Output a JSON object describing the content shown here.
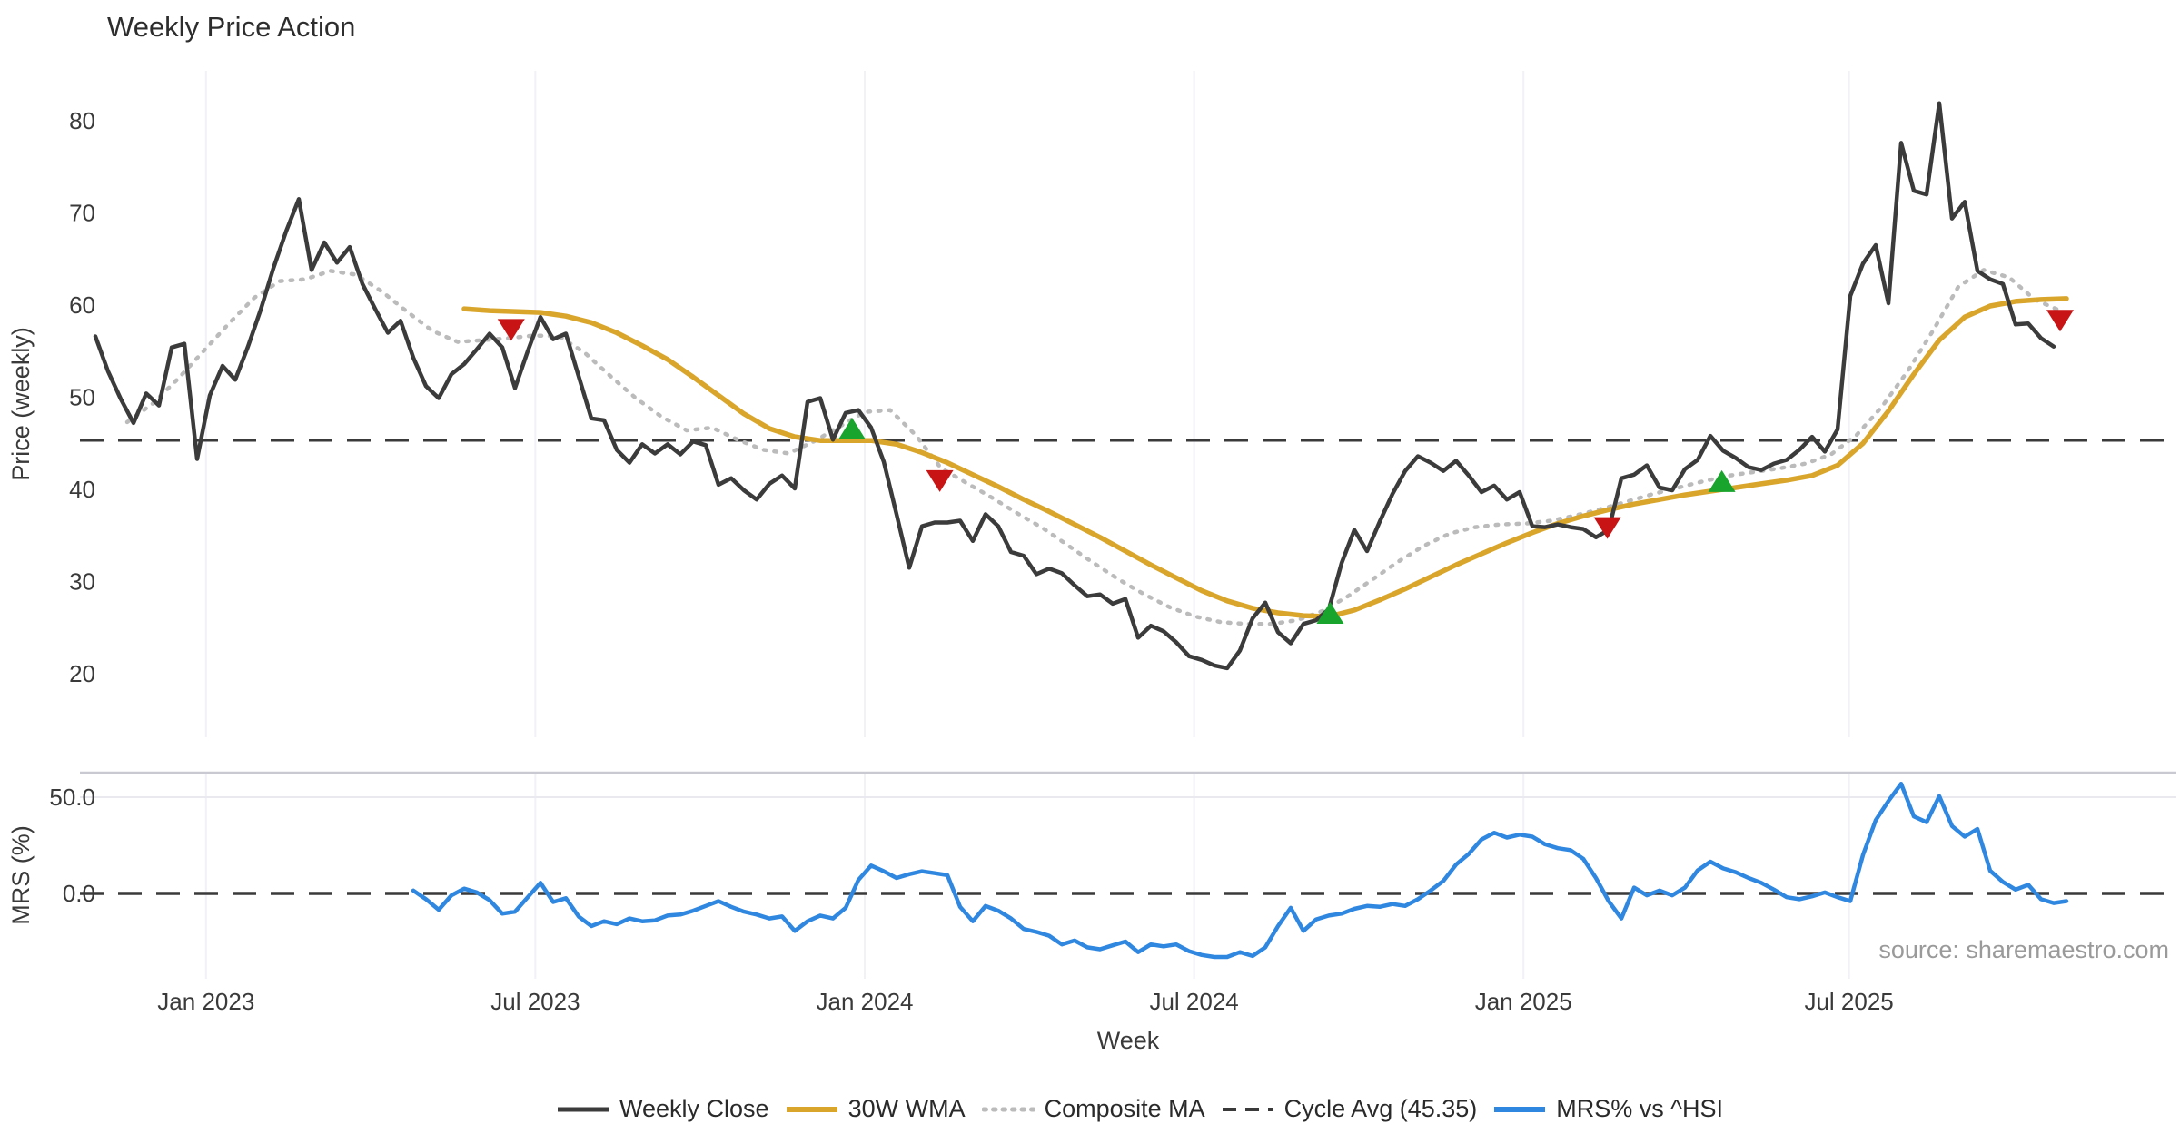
{
  "title": "Weekly Price Action",
  "source": "source: sharemaestro.com",
  "axes": {
    "price_label": "Price (weekly)",
    "mrs_label": "MRS (%)",
    "x_label": "Week",
    "price_ticks": [
      80,
      70,
      60,
      50,
      40,
      30,
      20
    ],
    "mrs_ticks": [
      {
        "value": 50,
        "label": "50.0"
      },
      {
        "value": 0,
        "label": "0.0"
      }
    ],
    "x_ticks": [
      {
        "label": "Jan 2023",
        "week": 8.7
      },
      {
        "label": "Jul 2023",
        "week": 34.6
      },
      {
        "label": "Jan 2024",
        "week": 60.5
      },
      {
        "label": "Jul 2024",
        "week": 86.4
      },
      {
        "label": "Jan 2025",
        "week": 112.3
      },
      {
        "label": "Jul 2025",
        "week": 137.9
      }
    ]
  },
  "colors": {
    "weekly_close": "#3b3b3b",
    "wma": "#d9a62b",
    "composite": "#bbbbbb",
    "cycle": "#3a3a3a",
    "mrs": "#2f87e0",
    "sell": "#c81414",
    "buy": "#18a42d",
    "grid": "#f1f1f6",
    "panel_border": "#c9c9d2",
    "mrs_grid": "#e9e9ef"
  },
  "legend": {
    "items": [
      {
        "label": "Weekly Close",
        "swatch": "solid-dark"
      },
      {
        "label": "30W WMA",
        "swatch": "solid-gold"
      },
      {
        "label": "Composite MA",
        "swatch": "dotted-gray"
      },
      {
        "label": "Cycle Avg (45.35)",
        "swatch": "dashed-dark"
      },
      {
        "label": "MRS% vs ^HSI",
        "swatch": "solid-blue"
      }
    ]
  },
  "chart_data": [
    {
      "type": "line",
      "panel": "price",
      "title": "Weekly Price Action",
      "xlabel": "Week",
      "ylabel": "Price (weekly)",
      "ylim": [
        13,
        85
      ],
      "grid": "vertical-only",
      "cycle_avg": 45.35,
      "series": [
        {
          "name": "Weekly Close",
          "style": "solid",
          "start_week": 0,
          "week_step": 1,
          "values": [
            56.6,
            52.8,
            49.8,
            47.2,
            50.4,
            49.1,
            55.4,
            55.8,
            43.3,
            50.2,
            53.4,
            51.9,
            55.5,
            59.5,
            64.0,
            68.0,
            71.5,
            63.8,
            66.8,
            64.6,
            66.3,
            62.3,
            59.6,
            57.0,
            58.3,
            54.3,
            51.2,
            49.9,
            52.5,
            53.6,
            55.2,
            56.9,
            55.4,
            51.0,
            55.0,
            58.7,
            56.3,
            56.9,
            52.3,
            47.7,
            47.5,
            44.3,
            42.9,
            44.9,
            43.9,
            44.9,
            43.8,
            45.2,
            44.8,
            40.5,
            41.2,
            39.9,
            38.9,
            40.6,
            41.5,
            40.1,
            49.5,
            49.9,
            45.4,
            48.3,
            48.6,
            46.7,
            43.0,
            37.3,
            31.5,
            36.0,
            36.4,
            36.4,
            36.6,
            34.4,
            37.3,
            36.0,
            33.2,
            32.8,
            30.8,
            31.4,
            30.9,
            29.6,
            28.4,
            28.6,
            27.6,
            28.1,
            23.9,
            25.2,
            24.6,
            23.4,
            21.9,
            21.5,
            20.9,
            20.6,
            22.5,
            26.0,
            27.7,
            24.5,
            23.3,
            25.4,
            25.8,
            27.0,
            32.0,
            35.6,
            33.3,
            36.5,
            39.5,
            42.0,
            43.6,
            42.9,
            42.0,
            43.1,
            41.5,
            39.7,
            40.4,
            38.9,
            39.7,
            36.0,
            35.9,
            36.2,
            35.9,
            35.7,
            34.8,
            35.6,
            41.2,
            41.6,
            42.6,
            40.2,
            39.9,
            42.2,
            43.2,
            45.8,
            44.2,
            43.4,
            42.4,
            42.1,
            42.8,
            43.2,
            44.3,
            45.7,
            44.1,
            46.5,
            61.0,
            64.5,
            66.5,
            60.2,
            77.6,
            72.4,
            72.0,
            81.9,
            69.4,
            71.2,
            63.7,
            62.8,
            62.3,
            57.9,
            58.0,
            56.4,
            55.5
          ]
        },
        {
          "name": "30W WMA",
          "style": "solid",
          "start_week": 29,
          "week_step": 2,
          "values": [
            59.6,
            59.4,
            59.3,
            59.2,
            58.8,
            58.1,
            57.0,
            55.6,
            54.1,
            52.2,
            50.2,
            48.2,
            46.6,
            45.7,
            45.3,
            45.3,
            45.3,
            44.9,
            44.0,
            42.9,
            41.6,
            40.3,
            38.9,
            37.6,
            36.2,
            34.8,
            33.3,
            31.8,
            30.4,
            29.0,
            27.9,
            27.1,
            26.6,
            26.3,
            26.2,
            26.9,
            28.0,
            29.2,
            30.5,
            31.8,
            33.0,
            34.2,
            35.3,
            36.3,
            37.1,
            37.8,
            38.4,
            38.9,
            39.4,
            39.8,
            40.2,
            40.6,
            41.0,
            41.5,
            42.6,
            45.0,
            48.5,
            52.5,
            56.2,
            58.7,
            59.9,
            60.4,
            60.6,
            60.7
          ]
        },
        {
          "name": "Composite MA",
          "style": "dotted",
          "start_week": 2.5,
          "week_step": 2,
          "values": [
            47.3,
            49.3,
            52.0,
            55.0,
            58.0,
            60.8,
            62.6,
            62.8,
            63.7,
            63.3,
            61.5,
            59.3,
            57.2,
            56.0,
            56.2,
            56.4,
            56.7,
            56.6,
            54.8,
            52.3,
            49.9,
            47.9,
            46.4,
            46.7,
            45.4,
            44.3,
            43.9,
            45.2,
            46.8,
            48.4,
            48.6,
            45.9,
            42.3,
            40.7,
            39.1,
            37.4,
            35.8,
            33.9,
            32.0,
            30.2,
            28.6,
            27.2,
            26.2,
            25.6,
            25.4,
            25.4,
            25.8,
            26.8,
            28.4,
            30.3,
            32.2,
            33.9,
            35.2,
            35.9,
            36.2,
            36.3,
            36.6,
            37.2,
            37.9,
            38.7,
            39.5,
            40.2,
            40.9,
            41.5,
            41.9,
            42.3,
            42.8,
            43.8,
            45.9,
            49.0,
            52.8,
            57.2,
            62.0,
            63.8,
            63.0,
            60.6,
            59.4
          ]
        }
      ],
      "signals": {
        "sell": [
          [
            32.7,
            57.3
          ],
          [
            66.4,
            40.9
          ],
          [
            118.9,
            35.8
          ],
          [
            154.5,
            58.3
          ]
        ],
        "buy": [
          [
            59.5,
            46.6
          ],
          [
            97.1,
            26.6
          ],
          [
            127.9,
            40.9
          ]
        ]
      }
    },
    {
      "type": "line",
      "panel": "mrs",
      "ylabel": "MRS (%)",
      "ylim": [
        -44,
        63
      ],
      "zero_line": 0,
      "series": [
        {
          "name": "MRS% vs ^HSI",
          "style": "solid",
          "start_week": 25,
          "week_step": 1,
          "values": [
            1.5,
            -3.0,
            -8.5,
            -1.0,
            2.5,
            0.5,
            -3.5,
            -10.5,
            -9.5,
            -2.0,
            5.5,
            -4.5,
            -2.5,
            -12.0,
            -17.0,
            -14.5,
            -16.0,
            -13.0,
            -14.5,
            -14.0,
            -11.5,
            -11.0,
            -9.0,
            -6.5,
            -4.0,
            -7.0,
            -9.5,
            -11.0,
            -13.0,
            -12.0,
            -19.5,
            -14.5,
            -11.5,
            -13.0,
            -7.5,
            7.0,
            14.5,
            11.5,
            8.0,
            10.0,
            11.5,
            10.5,
            9.5,
            -7.0,
            -14.5,
            -6.5,
            -9.0,
            -13.0,
            -18.5,
            -20.0,
            -22.0,
            -26.5,
            -24.5,
            -28.0,
            -29.0,
            -27.0,
            -25.0,
            -30.5,
            -26.5,
            -27.5,
            -26.5,
            -30.0,
            -32.0,
            -33.0,
            -33.0,
            -30.5,
            -32.5,
            -28.0,
            -17.0,
            -7.5,
            -19.5,
            -13.5,
            -11.5,
            -10.5,
            -8.0,
            -6.5,
            -7.0,
            -5.5,
            -6.5,
            -3.0,
            1.5,
            6.5,
            15.0,
            20.5,
            28.0,
            31.5,
            29.0,
            30.5,
            29.5,
            25.5,
            23.5,
            22.5,
            18.0,
            8.0,
            -4.0,
            -13.0,
            3.0,
            -1.0,
            1.5,
            -1.0,
            3.0,
            12.0,
            16.5,
            13.0,
            11.0,
            8.0,
            5.5,
            2.0,
            -2.0,
            -3.0,
            -1.5,
            0.5,
            -2.0,
            -4.0,
            20.0,
            38.0,
            48.0,
            57.0,
            40.0,
            37.0,
            50.5,
            35.0,
            29.5,
            33.5,
            11.8,
            6.0,
            2.0,
            4.5,
            -3.0,
            -5.0,
            -4.0
          ]
        }
      ]
    }
  ]
}
